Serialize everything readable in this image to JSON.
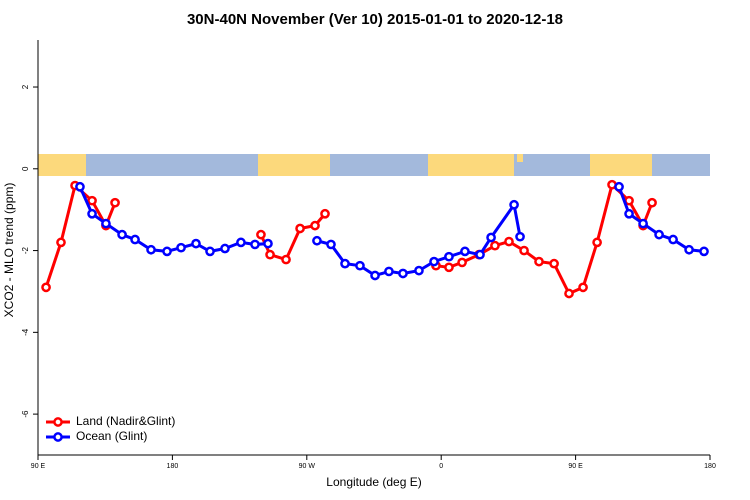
{
  "chart_data": {
    "type": "line",
    "title": "30N-40N November (Ver 10)   2015-01-01 to 2020-12-18",
    "x_label": "Longitude (deg E)",
    "y_label": "XCO2 - MLO trend (ppm)",
    "xlim": [
      90,
      540
    ],
    "xticks": [
      {
        "value": 90,
        "label": "90 E"
      },
      {
        "value": 180,
        "label": "180"
      },
      {
        "value": 270,
        "label": "90 W"
      },
      {
        "value": 360,
        "label": "0"
      },
      {
        "value": 450,
        "label": "90 E"
      },
      {
        "value": 540,
        "label": "180"
      }
    ],
    "ylim": [
      -7,
      3.15
    ],
    "yticks": [
      -6,
      -4,
      -2,
      0,
      2
    ],
    "legend": "bottom-left",
    "series": [
      {
        "name": "Land (Nadir&Glint)",
        "color": "#ff0000",
        "x": [
          95.4,
          105.4,
          114.8,
          126.2,
          135.5,
          141.6,
          null,
          239.3,
          245.4,
          256.1,
          265.5,
          275.5,
          282.2,
          null,
          356.5,
          365.2,
          374.0,
          385.3,
          396.0,
          405.4,
          415.5,
          425.5,
          435.6,
          445.6,
          455.0,
          464.4,
          474.4,
          485.8,
          495.2,
          501.2
        ],
        "values": [
          -2.9,
          -1.8,
          -0.41,
          -0.78,
          -1.39,
          -0.83,
          null,
          -1.61,
          -2.1,
          -2.22,
          -1.46,
          -1.39,
          -1.1,
          null,
          -2.37,
          -2.41,
          -2.29,
          -2.1,
          -1.88,
          -1.78,
          -2.0,
          -2.27,
          -2.32,
          -3.05,
          -2.9,
          -1.8,
          -0.39,
          -0.78,
          -1.39,
          -0.83
        ]
      },
      {
        "name": "Ocean (Glint)",
        "color": "#0000ff",
        "x": [
          118.1,
          126.2,
          135.5,
          146.3,
          155.0,
          165.7,
          176.4,
          185.8,
          195.8,
          205.2,
          215.2,
          225.9,
          235.3,
          244.0,
          null,
          276.8,
          286.2,
          295.6,
          305.6,
          315.7,
          325.0,
          334.4,
          345.1,
          355.2,
          365.2,
          375.9,
          386.0,
          393.4,
          408.8,
          412.8,
          null,
          479.1,
          485.8,
          495.2,
          505.9,
          515.3,
          526.0,
          536.0
        ],
        "values": [
          -0.44,
          -1.1,
          -1.34,
          -1.61,
          -1.73,
          -1.98,
          -2.02,
          -1.93,
          -1.83,
          -2.02,
          -1.95,
          -1.8,
          -1.85,
          -1.83,
          null,
          -1.76,
          -1.85,
          -2.32,
          -2.37,
          -2.61,
          -2.51,
          -2.56,
          -2.49,
          -2.27,
          -2.15,
          -2.02,
          -2.1,
          -1.68,
          -0.88,
          -1.66,
          null,
          -0.44,
          -1.1,
          -1.34,
          -1.61,
          -1.73,
          -1.98,
          -2.02
        ]
      }
    ]
  }
}
